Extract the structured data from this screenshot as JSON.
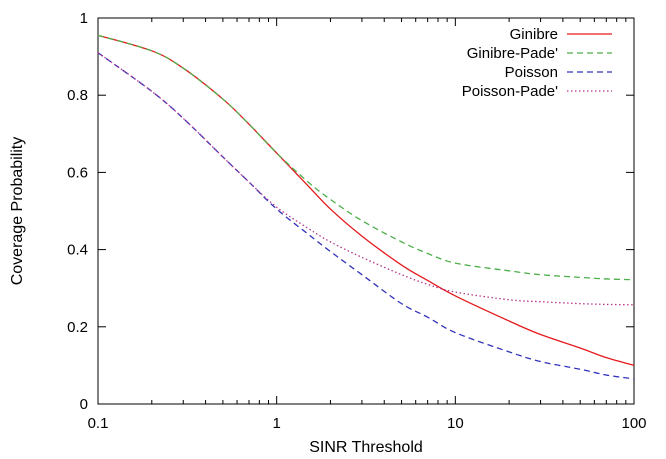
{
  "chart_data": {
    "type": "line",
    "title": "",
    "xlabel": "SINR Threshold",
    "ylabel": "Coverage Probability",
    "xscale": "log",
    "xlim": [
      0.1,
      100
    ],
    "ylim": [
      0,
      1
    ],
    "grid": false,
    "legend_position": "top-right",
    "x_ticks": [
      {
        "value": 0.1,
        "label": "0.1"
      },
      {
        "value": 1,
        "label": "1"
      },
      {
        "value": 10,
        "label": "10"
      },
      {
        "value": 100,
        "label": "100"
      }
    ],
    "y_ticks": [
      {
        "value": 0,
        "label": "0"
      },
      {
        "value": 0.2,
        "label": "0.2"
      },
      {
        "value": 0.4,
        "label": "0.4"
      },
      {
        "value": 0.6,
        "label": "0.6"
      },
      {
        "value": 0.8,
        "label": "0.8"
      },
      {
        "value": 1,
        "label": "1"
      }
    ],
    "x": [
      0.1,
      0.2,
      0.3,
      0.5,
      0.7,
      1,
      1.5,
      2,
      3,
      5,
      7,
      10,
      20,
      30,
      50,
      70,
      100
    ],
    "series": [
      {
        "name": "Ginibre",
        "color": "#e41a1c",
        "dash": "solid",
        "values": [
          0.955,
          0.915,
          0.87,
          0.79,
          0.725,
          0.65,
          0.565,
          0.505,
          0.435,
          0.36,
          0.32,
          0.28,
          0.215,
          0.18,
          0.145,
          0.12,
          0.1
        ]
      },
      {
        "name": "Ginibre-Pade'",
        "color": "#4daf4a",
        "dash": "dashed",
        "values": [
          0.955,
          0.915,
          0.87,
          0.79,
          0.725,
          0.65,
          0.575,
          0.53,
          0.475,
          0.42,
          0.39,
          0.365,
          0.345,
          0.335,
          0.328,
          0.324,
          0.322
        ]
      },
      {
        "name": "Poisson",
        "color": "#3333bb",
        "dash": "dashed",
        "values": [
          0.91,
          0.81,
          0.74,
          0.64,
          0.575,
          0.505,
          0.44,
          0.395,
          0.335,
          0.26,
          0.225,
          0.185,
          0.135,
          0.11,
          0.09,
          0.075,
          0.065
        ]
      },
      {
        "name": "Poisson-Pade'",
        "color": "#b4358f",
        "dash": "dotted",
        "values": [
          0.91,
          0.81,
          0.74,
          0.64,
          0.575,
          0.51,
          0.455,
          0.42,
          0.38,
          0.335,
          0.31,
          0.29,
          0.27,
          0.265,
          0.26,
          0.258,
          0.257
        ]
      }
    ]
  }
}
